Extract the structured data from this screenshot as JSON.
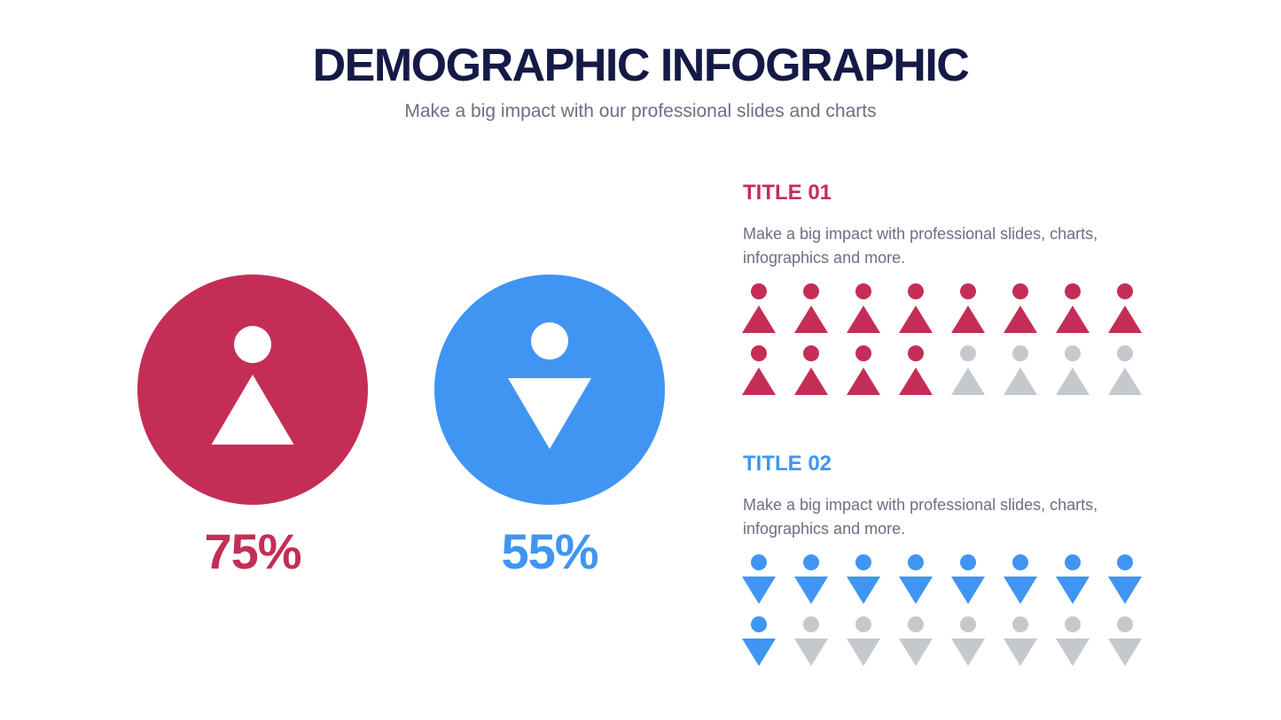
{
  "header": {
    "title": "DEMOGRAPHIC INFOGRAPHIC",
    "subtitle": "Make a big impact with our professional slides and charts"
  },
  "sections": [
    {
      "percent": "75%",
      "title": "TITLE 01",
      "description": "Make a big impact with professional slides, charts, infographics and more.",
      "color": "#c42e56",
      "direction": "up",
      "icons_total": 16,
      "icons_filled": 12
    },
    {
      "percent": "55%",
      "title": "TITLE 02",
      "description": "Make a big impact with professional slides, charts, infographics and more.",
      "color": "#4095f2",
      "direction": "down",
      "icons_total": 16,
      "icons_filled": 9
    }
  ],
  "empty_color": "#c5c8cd"
}
